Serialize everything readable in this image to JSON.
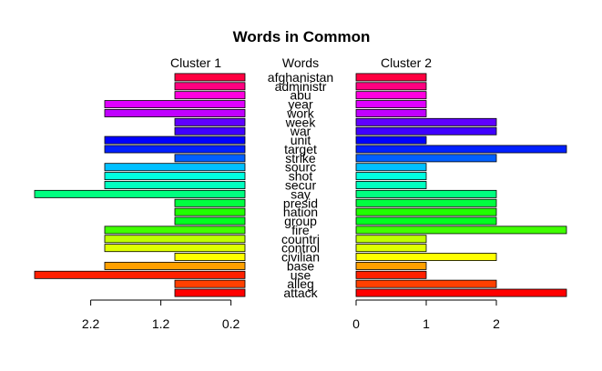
{
  "chart_data": {
    "type": "bar",
    "orientation": "horizontal",
    "layout": "pyramid",
    "title": "Words in Common",
    "center_label": "Words",
    "words": [
      "attack",
      "alleg",
      "use",
      "base",
      "civilian",
      "control",
      "countri",
      "fire",
      "group",
      "nation",
      "presid",
      "say",
      "secur",
      "shot",
      "sourc",
      "strike",
      "target",
      "unit",
      "war",
      "week",
      "work",
      "year",
      "abu",
      "administr",
      "afghanistan"
    ],
    "colors": [
      "#FF0000",
      "#FF4000",
      "#FF2000",
      "#FFA000",
      "#FFFF00",
      "#DFFF00",
      "#C0FF00",
      "#40FF00",
      "#00FF20",
      "#20FF00",
      "#00FF40",
      "#00FF80",
      "#00FFC0",
      "#00FFE0",
      "#00C0FF",
      "#0060FF",
      "#0020FF",
      "#0000FF",
      "#4000FF",
      "#6000FF",
      "#C000FF",
      "#E000FF",
      "#FF00E0",
      "#FF0080",
      "#FF0040"
    ],
    "series": [
      {
        "name": "Cluster 1",
        "side": "left",
        "values": [
          1,
          1,
          3,
          2,
          1,
          2,
          2,
          2,
          1,
          1,
          1,
          3,
          2,
          2,
          2,
          1,
          2,
          2,
          1,
          1,
          2,
          2,
          1,
          1,
          1
        ]
      },
      {
        "name": "Cluster 2",
        "side": "right",
        "values": [
          3,
          2,
          1,
          1,
          2,
          1,
          1,
          3,
          2,
          2,
          2,
          2,
          1,
          1,
          1,
          2,
          3,
          1,
          2,
          2,
          1,
          1,
          1,
          1,
          1
        ]
      }
    ],
    "left_axis": {
      "range": [
        0,
        3
      ],
      "reversed": true,
      "ticks": [
        2.2,
        1.2,
        0.2
      ],
      "tick_labels": [
        "2.2",
        "1.2",
        "0.2"
      ]
    },
    "right_axis": {
      "range": [
        0,
        3
      ],
      "ticks": [
        0,
        1,
        2
      ],
      "tick_labels": [
        "0",
        "1",
        "2"
      ]
    }
  }
}
